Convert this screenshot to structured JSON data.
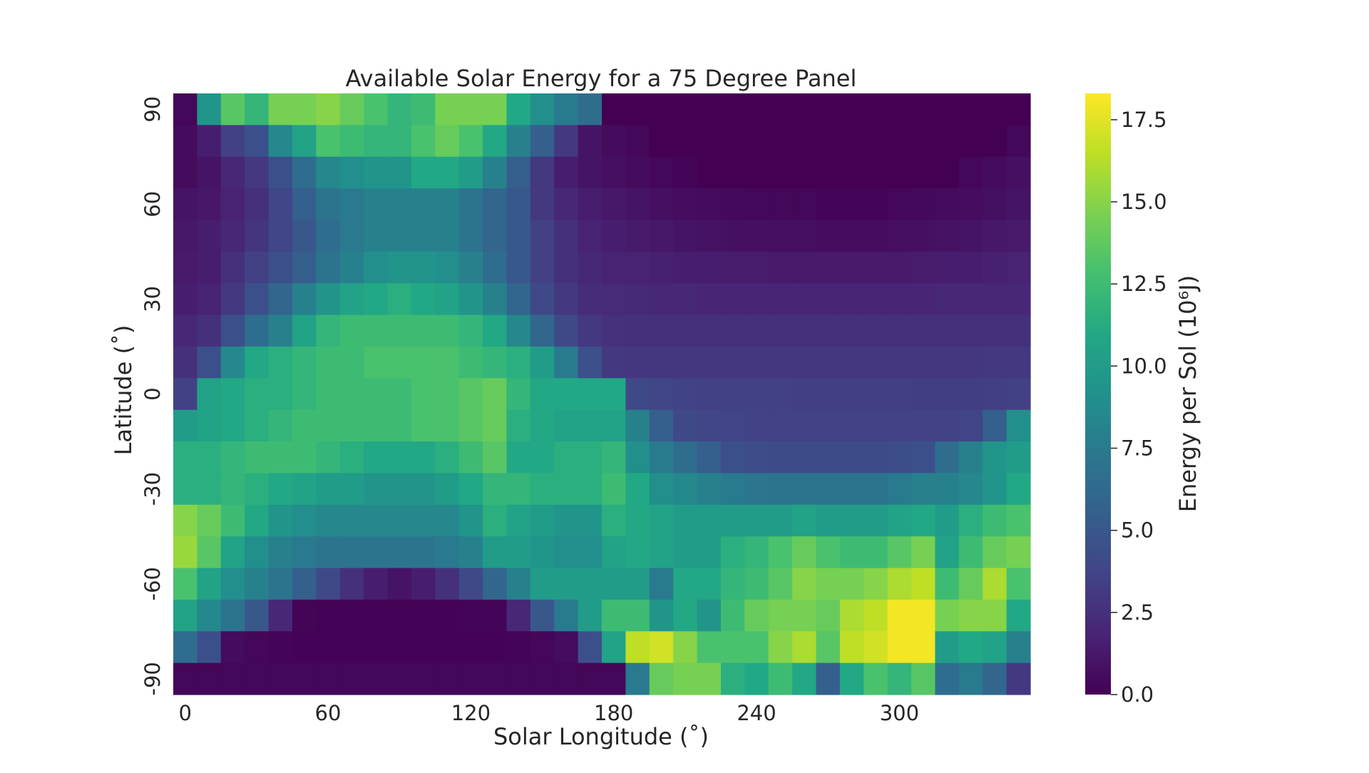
{
  "chart_data": {
    "type": "heatmap",
    "title": "Available Solar Energy for a 75 Degree Panel",
    "xlabel": "Solar Longitude (˚)",
    "ylabel": "Latitude (˚)",
    "colorbar_label": "Energy per Sol (10⁶J)",
    "colormap": "viridis",
    "vmin": 0.0,
    "vmax": 18.3,
    "x_tick_labels": [
      "0",
      "60",
      "120",
      "180",
      "240",
      "300"
    ],
    "x_tick_values": [
      0,
      60,
      120,
      180,
      240,
      300
    ],
    "y_tick_labels": [
      "90",
      "60",
      "30",
      "0",
      "-30",
      "-60",
      "-90"
    ],
    "y_tick_values": [
      90,
      60,
      30,
      0,
      -30,
      -60,
      -90
    ],
    "colorbar_ticks": [
      "0.0",
      "2.5",
      "5.0",
      "7.5",
      "10.0",
      "12.5",
      "15.0",
      "17.5"
    ],
    "colorbar_tick_values": [
      0.0,
      2.5,
      5.0,
      7.5,
      10.0,
      12.5,
      15.0,
      17.5
    ],
    "x_values": [
      0,
      10,
      20,
      30,
      40,
      50,
      60,
      70,
      80,
      90,
      100,
      110,
      120,
      130,
      140,
      150,
      160,
      170,
      180,
      190,
      200,
      210,
      220,
      230,
      240,
      250,
      260,
      270,
      280,
      290,
      300,
      310,
      320,
      330,
      340,
      350
    ],
    "y_values": [
      90,
      80,
      70,
      60,
      50,
      40,
      30,
      20,
      10,
      0,
      -10,
      -20,
      -30,
      -40,
      -50,
      -60,
      -70,
      -80,
      -90
    ],
    "grid": false,
    "values": [
      [
        0.3,
        9.5,
        13.5,
        12.0,
        14.5,
        14.5,
        15.0,
        14.0,
        13.0,
        12.0,
        12.5,
        14.5,
        14.5,
        14.5,
        11.0,
        9.0,
        7.5,
        6.5,
        0,
        0,
        0,
        0,
        0,
        0,
        0,
        0,
        0,
        0,
        0,
        0,
        0,
        0,
        0,
        0,
        0,
        0
      ],
      [
        0.5,
        1.5,
        3.5,
        4.5,
        8.5,
        10.5,
        13.0,
        12.5,
        12.0,
        12.0,
        13.0,
        14.0,
        13.0,
        11.0,
        8.0,
        5.5,
        3.0,
        1.0,
        0.5,
        0.3,
        0,
        0,
        0,
        0,
        0,
        0,
        0,
        0,
        0,
        0,
        0,
        0,
        0,
        0,
        0,
        0.3
      ],
      [
        0.5,
        1.0,
        2.0,
        3.0,
        4.5,
        6.5,
        8.5,
        9.0,
        9.5,
        9.5,
        11.0,
        11.0,
        10.0,
        8.0,
        5.5,
        3.0,
        1.5,
        1.0,
        0.8,
        0.5,
        0.3,
        0.2,
        0,
        0,
        0,
        0,
        0,
        0,
        0,
        0,
        0,
        0,
        0,
        0.3,
        0.5,
        0.8
      ],
      [
        1.0,
        1.2,
        1.8,
        2.5,
        3.8,
        5.5,
        7.0,
        7.5,
        8.0,
        8.0,
        8.0,
        8.0,
        7.0,
        6.0,
        5.0,
        3.0,
        2.0,
        1.5,
        1.2,
        1.0,
        0.8,
        0.6,
        0.5,
        0.4,
        0.3,
        0.3,
        0.3,
        0.2,
        0.2,
        0.2,
        0.3,
        0.4,
        0.5,
        0.6,
        0.8,
        1.0
      ],
      [
        1.2,
        1.5,
        2.0,
        2.8,
        3.8,
        5.0,
        6.5,
        7.5,
        8.0,
        8.0,
        8.0,
        8.0,
        7.0,
        6.0,
        5.0,
        3.5,
        2.5,
        1.8,
        1.5,
        1.3,
        1.2,
        1.0,
        0.9,
        0.8,
        0.8,
        0.7,
        0.7,
        0.6,
        0.6,
        0.6,
        0.7,
        0.8,
        0.9,
        1.0,
        1.2,
        1.3
      ],
      [
        1.3,
        1.5,
        2.5,
        3.5,
        4.5,
        5.5,
        7.0,
        8.0,
        9.0,
        9.5,
        9.5,
        9.0,
        8.0,
        6.5,
        5.0,
        3.5,
        2.5,
        2.0,
        1.8,
        1.7,
        1.6,
        1.5,
        1.5,
        1.4,
        1.4,
        1.3,
        1.3,
        1.3,
        1.3,
        1.3,
        1.3,
        1.4,
        1.5,
        1.5,
        1.6,
        1.7
      ],
      [
        1.5,
        1.8,
        3.0,
        4.5,
        6.0,
        8.0,
        9.5,
        10.5,
        11.0,
        11.5,
        11.0,
        10.5,
        9.5,
        8.0,
        6.0,
        4.0,
        3.0,
        2.3,
        2.2,
        2.1,
        2.0,
        2.0,
        1.9,
        1.9,
        1.9,
        1.9,
        1.9,
        1.9,
        1.9,
        1.9,
        1.9,
        1.9,
        2.0,
        2.0,
        2.0,
        2.0
      ],
      [
        2.0,
        2.5,
        4.5,
        6.5,
        8.0,
        10.5,
        12.0,
        12.5,
        12.5,
        12.5,
        12.5,
        12.5,
        12.0,
        11.0,
        8.5,
        6.0,
        4.0,
        3.0,
        2.6,
        2.5,
        2.5,
        2.5,
        2.5,
        2.5,
        2.5,
        2.5,
        2.5,
        2.5,
        2.5,
        2.5,
        2.5,
        2.5,
        2.5,
        2.5,
        2.5,
        2.5
      ],
      [
        2.5,
        4.5,
        8.5,
        11.0,
        11.5,
        12.0,
        12.5,
        12.5,
        13.0,
        13.0,
        13.0,
        13.0,
        12.5,
        12.0,
        11.5,
        10.0,
        7.5,
        4.5,
        3.0,
        2.9,
        2.9,
        2.9,
        2.9,
        2.9,
        2.9,
        2.9,
        2.9,
        2.9,
        2.9,
        2.9,
        2.9,
        2.9,
        2.9,
        2.9,
        3.0,
        3.0
      ],
      [
        3.5,
        10.5,
        11.0,
        11.5,
        11.5,
        12.0,
        12.5,
        12.5,
        12.5,
        12.5,
        13.0,
        13.0,
        13.5,
        14.0,
        12.0,
        11.0,
        11.0,
        11.0,
        11.0,
        4.0,
        3.8,
        3.6,
        3.5,
        3.5,
        3.5,
        3.5,
        3.4,
        3.4,
        3.4,
        3.4,
        3.4,
        3.3,
        3.3,
        3.3,
        3.4,
        3.5
      ],
      [
        10.0,
        10.5,
        11.0,
        11.5,
        12.0,
        12.5,
        12.5,
        12.5,
        12.5,
        12.5,
        13.0,
        13.0,
        13.5,
        14.0,
        11.5,
        11.0,
        10.5,
        10.5,
        10.5,
        8.0,
        5.5,
        4.0,
        3.8,
        3.7,
        3.6,
        3.6,
        3.6,
        3.6,
        3.6,
        3.6,
        3.6,
        3.6,
        3.6,
        3.7,
        5.5,
        9.0
      ],
      [
        11.5,
        11.5,
        12.0,
        12.5,
        12.5,
        12.5,
        12.0,
        11.5,
        11.0,
        11.0,
        11.0,
        11.5,
        12.5,
        13.5,
        11.0,
        11.0,
        11.5,
        11.5,
        12.0,
        9.0,
        7.5,
        6.5,
        5.5,
        4.5,
        4.3,
        4.2,
        4.2,
        4.2,
        4.2,
        4.2,
        4.3,
        4.5,
        6.5,
        8.0,
        9.5,
        10.0
      ],
      [
        11.5,
        11.5,
        12.0,
        11.5,
        11.0,
        10.5,
        10.0,
        10.0,
        9.5,
        9.5,
        9.5,
        10.0,
        11.0,
        12.0,
        12.0,
        11.5,
        11.5,
        11.5,
        12.5,
        11.0,
        9.0,
        8.5,
        8.0,
        7.5,
        7.2,
        7.0,
        7.0,
        7.0,
        7.0,
        7.0,
        7.5,
        8.0,
        8.0,
        8.5,
        9.5,
        11.0
      ],
      [
        15.0,
        14.0,
        12.5,
        11.0,
        9.5,
        9.0,
        8.5,
        8.5,
        8.5,
        8.5,
        8.5,
        8.5,
        9.5,
        11.5,
        10.5,
        10.0,
        9.5,
        9.5,
        11.5,
        11.0,
        10.5,
        10.0,
        10.0,
        10.0,
        10.0,
        10.0,
        10.5,
        10.0,
        10.0,
        10.0,
        10.5,
        11.0,
        10.0,
        11.5,
        12.5,
        13.0
      ],
      [
        15.5,
        13.5,
        10.5,
        9.0,
        8.0,
        7.5,
        7.0,
        7.0,
        7.0,
        7.0,
        7.0,
        7.5,
        8.0,
        10.0,
        10.0,
        9.5,
        9.0,
        9.0,
        10.5,
        11.0,
        10.5,
        10.0,
        10.0,
        11.5,
        12.0,
        13.0,
        14.0,
        13.0,
        12.5,
        12.5,
        13.5,
        14.5,
        10.5,
        12.5,
        14.0,
        14.5
      ],
      [
        13.0,
        10.5,
        9.0,
        8.0,
        7.0,
        5.5,
        4.0,
        2.5,
        1.5,
        1.0,
        1.5,
        2.5,
        4.0,
        6.0,
        8.0,
        10.0,
        10.0,
        10.0,
        10.0,
        10.0,
        7.5,
        11.0,
        11.0,
        12.0,
        12.5,
        13.5,
        15.0,
        14.5,
        14.5,
        15.0,
        16.0,
        16.5,
        12.5,
        14.0,
        16.0,
        13.0
      ],
      [
        10.5,
        8.5,
        7.0,
        5.0,
        2.0,
        0.2,
        0.1,
        0.1,
        0.1,
        0.1,
        0.1,
        0.1,
        0.2,
        0.2,
        2.0,
        5.0,
        7.5,
        10.0,
        12.5,
        12.5,
        9.5,
        11.0,
        9.5,
        12.5,
        14.0,
        14.5,
        14.5,
        14.0,
        16.0,
        16.5,
        18.0,
        18.0,
        14.5,
        15.0,
        15.0,
        11.0
      ],
      [
        6.5,
        4.5,
        0.5,
        0.3,
        0.2,
        0.1,
        0.1,
        0.1,
        0.1,
        0.1,
        0.1,
        0.1,
        0.1,
        0.1,
        0.2,
        0.3,
        0.6,
        4.5,
        10.5,
        16.5,
        17.0,
        15.0,
        13.0,
        13.0,
        13.0,
        15.0,
        16.0,
        13.5,
        16.5,
        17.0,
        18.0,
        18.0,
        10.0,
        11.0,
        10.5,
        8.0
      ],
      [
        0.3,
        0.3,
        0.3,
        0.3,
        0.3,
        0.3,
        0.3,
        0.3,
        0.3,
        0.3,
        0.3,
        0.3,
        0.3,
        0.3,
        0.3,
        0.3,
        0.3,
        0.3,
        0.3,
        7.5,
        14.0,
        14.5,
        14.5,
        11.5,
        11.0,
        12.5,
        11.0,
        5.5,
        11.0,
        13.0,
        12.0,
        13.5,
        6.5,
        7.5,
        6.0,
        3.0
      ]
    ]
  }
}
